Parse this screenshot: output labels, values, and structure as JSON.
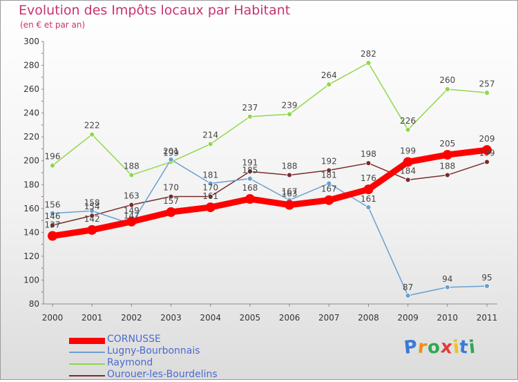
{
  "title": "Evolution des Impôts locaux par Habitant",
  "subtitle": "(en € et par an)",
  "logo_text": "Proxiti",
  "chart_data": {
    "type": "line",
    "title": "Evolution des Impôts locaux par Habitant",
    "subtitle": "(en € et par an)",
    "x": [
      "2000",
      "2001",
      "2002",
      "2003",
      "2004",
      "2005",
      "2006",
      "2007",
      "2008",
      "2009",
      "2010",
      "2011"
    ],
    "ylim": [
      80,
      300
    ],
    "yticks": [
      80,
      100,
      120,
      140,
      160,
      180,
      200,
      220,
      240,
      260,
      280,
      300
    ],
    "grid": false,
    "legend": "bottom-left",
    "series": [
      {
        "name": "CORNUSSE",
        "color": "#ff0000",
        "values": [
          137,
          142,
          149,
          157,
          161,
          168,
          163,
          167,
          176,
          199,
          205,
          209
        ]
      },
      {
        "name": "Lugny-Bourbonnais",
        "color": "#6a9fd0",
        "values": [
          156,
          158,
          147,
          201,
          181,
          185,
          167,
          181,
          161,
          87,
          94,
          95
        ]
      },
      {
        "name": "Raymond",
        "color": "#8fd84a",
        "values": [
          196,
          222,
          188,
          199,
          214,
          237,
          239,
          264,
          282,
          226,
          260,
          257
        ]
      },
      {
        "name": "Ourouer-les-Bourdelins",
        "color": "#7a2a2a",
        "values": [
          146,
          154,
          163,
          170,
          170,
          191,
          188,
          192,
          198,
          184,
          188,
          199
        ]
      }
    ]
  }
}
